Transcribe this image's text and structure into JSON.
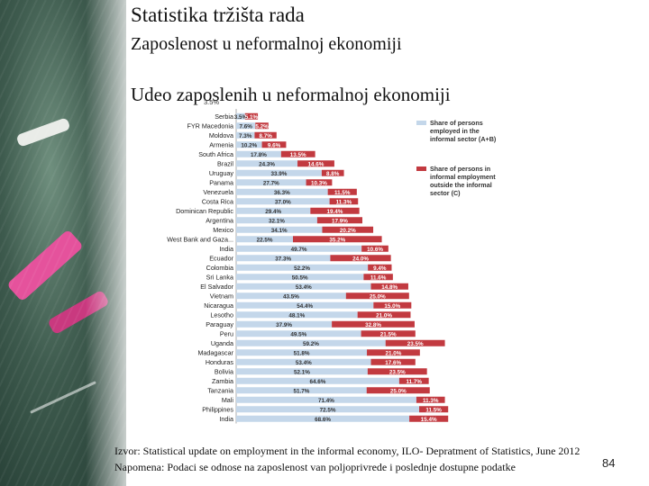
{
  "title": "Statistika tržišta rada",
  "subtitle": "Zaposlenost u neformalnoj ekonomiji",
  "heading": "Udeo zaposlenih u neformalnoj ekonomiji",
  "colors": {
    "sector": "#c4d7ea",
    "outside": "#c23a40"
  },
  "chart_data": {
    "type": "bar",
    "orientation": "horizontal",
    "stacked": true,
    "title": "",
    "xlabel": "",
    "ylabel": "",
    "xlim": [
      0,
      100
    ],
    "legend_position": "right",
    "top_label": "3.5%",
    "categories": [
      "Serbia",
      "FYR Macedonia",
      "Moldova",
      "Armenia",
      "South Africa",
      "Brazil",
      "Uruguay",
      "Panama",
      "Venezuela",
      "Costa Rica",
      "Dominican Republic",
      "Argentina",
      "Mexico",
      "West Bank and Gaza...",
      "India",
      "Ecuador",
      "Colombia",
      "Sri Lanka",
      "El Salvador",
      "Vietnam",
      "Nicaragua",
      "Lesotho",
      "Paraguay",
      "Peru",
      "Uganda",
      "Madagascar",
      "Honduras",
      "Bolivia",
      "Zambia",
      "Tanzania",
      "Mali",
      "Philippines",
      "India"
    ],
    "series": [
      {
        "name": "Share of persons employed in the informal sector (A+B)",
        "values": [
          3.5,
          7.6,
          7.3,
          10.2,
          17.8,
          24.3,
          33.9,
          27.7,
          36.3,
          37.0,
          29.4,
          32.1,
          34.1,
          22.5,
          49.7,
          37.3,
          52.2,
          50.5,
          53.4,
          43.5,
          54.4,
          48.1,
          37.9,
          49.5,
          59.2,
          51.8,
          53.4,
          52.1,
          64.6,
          51.7,
          71.4,
          72.5,
          68.6
        ],
        "labels": [
          "3.5%",
          "7.6%",
          "7.3%",
          "10.2%",
          "17.8%",
          "24.3%",
          "33.9%",
          "27.7%",
          "36.3%",
          "37.0%",
          "29.4%",
          "32.1%",
          "34.1%",
          "22.5%",
          "49.7%",
          "37.3%",
          "52.2%",
          "50.5%",
          "53.4%",
          "43.5%",
          "54.4%",
          "48.1%",
          "37.9%",
          "49.5%",
          "59.2%",
          "51.8%",
          "53.4%",
          "52.1%",
          "64.6%",
          "51.7%",
          "71.4%",
          "72.5%",
          "68.6%"
        ]
      },
      {
        "name": "Share of persons in informal employment outside the informal sector (C)",
        "values": [
          5.1,
          5.2,
          8.7,
          9.6,
          13.5,
          14.6,
          8.8,
          10.3,
          11.5,
          11.3,
          19.4,
          17.9,
          20.2,
          35.2,
          10.6,
          24.0,
          9.4,
          11.6,
          14.8,
          25.0,
          15.0,
          21.0,
          32.8,
          21.5,
          23.5,
          21.0,
          17.6,
          23.5,
          11.7,
          25.0,
          11.3,
          11.5,
          15.4
        ],
        "labels": [
          "5.1%",
          "5.2%",
          "8.7%",
          "9.6%",
          "13.5%",
          "14.6%",
          "8.8%",
          "10.3%",
          "11.5%",
          "11.3%",
          "19.4%",
          "17.9%",
          "20.2%",
          "35.2%",
          "10.6%",
          "24.0%",
          "9.4%",
          "11.6%",
          "14.8%",
          "25.0%",
          "15.0%",
          "21.0%",
          "32.8%",
          "21.5%",
          "23.5%",
          "21.0%",
          "17.6%",
          "23.5%",
          "11.7%",
          "25.0%",
          "11.3%",
          "11.5%",
          "15.4%"
        ]
      }
    ]
  },
  "legend": {
    "sector_label": "Share of persons employed in the informal sector (A+B)",
    "outside_label": "Share of persons in informal employment outside the informal sector (C)"
  },
  "footer": {
    "source": "Izvor: Statistical update on employment in the informal economy, ILO- Depratment  of Statistics, June 2012",
    "note": "Napomena: Podaci se odnose na zaposlenost van poljoprivrede i poslednje dostupne podatke"
  },
  "page_number": "84"
}
